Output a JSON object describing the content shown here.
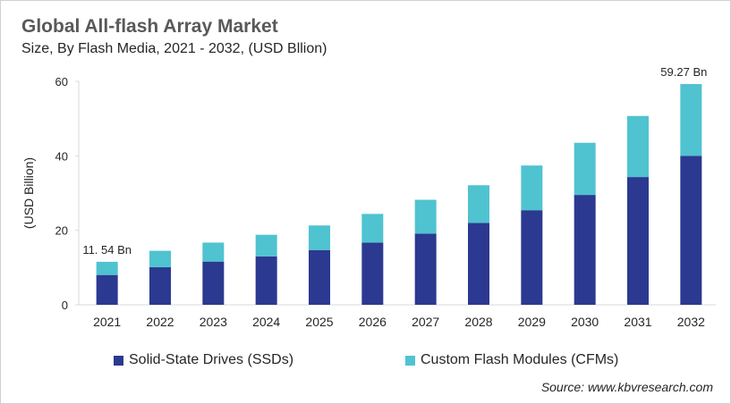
{
  "chart_data": {
    "type": "bar",
    "stacked": true,
    "title": "Global All-flash Array Market",
    "subtitle": "Size, By Flash Media, 2021 - 2032, (USD Bllion)",
    "xlabel": "",
    "ylabel": "(USD Billion)",
    "ylim": [
      0,
      60
    ],
    "yticks": [
      0,
      20,
      40,
      60
    ],
    "grid": false,
    "legend_placement": "bottom",
    "categories": [
      "2021",
      "2022",
      "2023",
      "2024",
      "2025",
      "2026",
      "2027",
      "2028",
      "2029",
      "2030",
      "2031",
      "2032"
    ],
    "series": [
      {
        "name": "Solid-State Drives (SSDs)",
        "color": "#2b3990",
        "values": [
          8.0,
          10.1,
          11.6,
          13.0,
          14.7,
          16.7,
          19.1,
          22.0,
          25.4,
          29.5,
          34.3,
          40.0
        ]
      },
      {
        "name": "Custom Flash Modules (CFMs)",
        "color": "#4fc3d0",
        "values": [
          3.54,
          4.4,
          5.1,
          5.8,
          6.6,
          7.7,
          9.1,
          10.1,
          12.0,
          14.0,
          16.4,
          19.27
        ]
      }
    ],
    "annotations": [
      {
        "category": "2021",
        "text": "11. 54 Bn"
      },
      {
        "category": "2032",
        "text": "59.27 Bn"
      }
    ]
  },
  "source": "Source: www.kbvresearch.com"
}
